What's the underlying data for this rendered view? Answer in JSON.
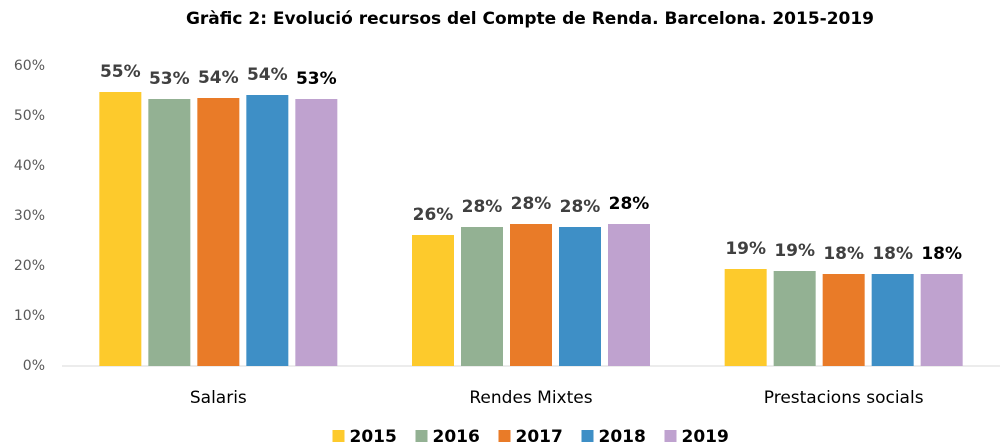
{
  "chart_data": {
    "type": "bar",
    "title": "Gràfic 2: Evolució recursos del Compte de Renda. Barcelona. 2015-2019",
    "categories": [
      "Salaris",
      "Rendes Mixtes",
      "Prestacions socials"
    ],
    "series": [
      {
        "name": "2015",
        "color": "#fdca2c",
        "values": [
          54.8,
          26.2,
          19.4
        ],
        "value_labels": [
          "55%",
          "26%",
          "19%"
        ]
      },
      {
        "name": "2016",
        "color": "#93b193",
        "values": [
          53.4,
          27.8,
          19.0
        ],
        "value_labels": [
          "53%",
          "28%",
          "19%"
        ]
      },
      {
        "name": "2017",
        "color": "#e97b28",
        "values": [
          53.6,
          28.4,
          18.4
        ],
        "value_labels": [
          "54%",
          "28%",
          "18%"
        ]
      },
      {
        "name": "2018",
        "color": "#3e8fc6",
        "values": [
          54.2,
          27.8,
          18.4
        ],
        "value_labels": [
          "54%",
          "28%",
          "18%"
        ]
      },
      {
        "name": "2019",
        "color": "#bfa2cf",
        "values": [
          53.4,
          28.4,
          18.4
        ],
        "value_labels": [
          "53%",
          "28%",
          "18%"
        ]
      }
    ],
    "ylim": [
      0,
      60
    ],
    "yticks": [
      {
        "value": 0,
        "label": "0%"
      },
      {
        "value": 10,
        "label": "10%"
      },
      {
        "value": 20,
        "label": "20%"
      },
      {
        "value": 30,
        "label": "30%"
      },
      {
        "value": 40,
        "label": "40%"
      },
      {
        "value": 50,
        "label": "50%"
      },
      {
        "value": 60,
        "label": "60%"
      }
    ],
    "grid": false,
    "legend": "bottom"
  }
}
